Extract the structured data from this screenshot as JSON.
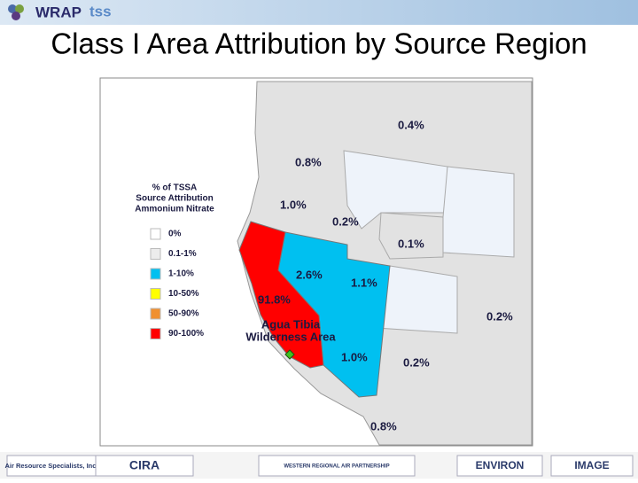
{
  "header": {
    "logo": "WRAP",
    "logo_suffix": "tss",
    "title": "Class I Area Attribution by Source Region"
  },
  "legend": {
    "title": [
      "% of TSSA",
      "Source Attribution",
      "Ammonium Nitrate"
    ],
    "items": [
      {
        "label": "0%",
        "color": "#ffffff"
      },
      {
        "label": "0.1-1%",
        "color": "#ececec"
      },
      {
        "label": "1-10%",
        "color": "#00c0f0"
      },
      {
        "label": "10-50%",
        "color": "#ffff00"
      },
      {
        "label": "50-90%",
        "color": "#f09030"
      },
      {
        "label": "90-100%",
        "color": "#ff0000"
      }
    ]
  },
  "map": {
    "region_labels": [
      "0.4%",
      "0.8%",
      "1.0%",
      "0.2%",
      "0.1%",
      "2.6%",
      "1.1%",
      "91.8%",
      "0.2%",
      "1.0%",
      "0.2%",
      "0.8%"
    ],
    "site": [
      "Agua Tibia",
      "Wilderness Area"
    ]
  },
  "footer": {
    "logos": [
      "Air Resource Specialists, Inc.",
      "CIRA",
      "WESTERN REGIONAL AIR PARTNERSHIP",
      "ENVIRON",
      "IMAGE"
    ]
  }
}
